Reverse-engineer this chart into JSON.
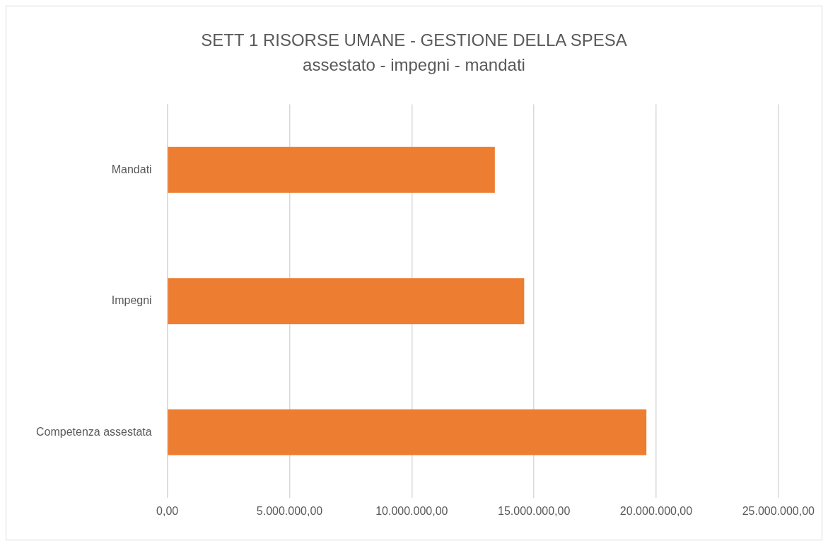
{
  "chart_data": {
    "type": "bar",
    "orientation": "horizontal",
    "title": "SETT 1 RISORSE UMANE - GESTIONE DELLA SPESA",
    "subtitle": "assestato - impegni - mandati",
    "categories": [
      "Mandati",
      "Impegni",
      "Competenza assestata"
    ],
    "values": [
      13400000,
      14600000,
      19600000
    ],
    "color": "#ed7d31",
    "xlim": [
      0,
      25000000
    ],
    "xticks": [
      {
        "value": 0,
        "label": "0,00"
      },
      {
        "value": 5000000,
        "label": "5.000.000,00"
      },
      {
        "value": 10000000,
        "label": "10.000.000,00"
      },
      {
        "value": 15000000,
        "label": "15.000.000,00"
      },
      {
        "value": 20000000,
        "label": "20.000.000,00"
      },
      {
        "value": 25000000,
        "label": "25.000.000,00"
      }
    ],
    "grid": "x",
    "legend": false
  }
}
